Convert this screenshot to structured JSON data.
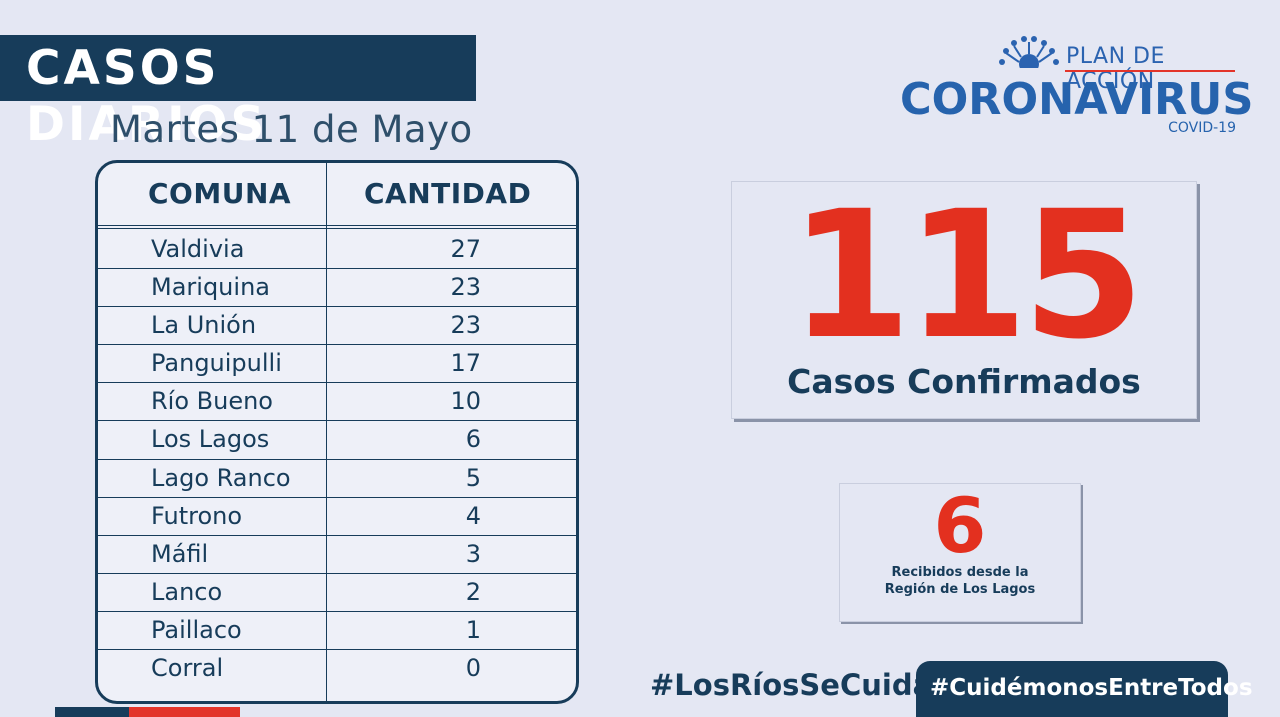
{
  "header": {
    "title": "CASOS DIARIOS",
    "date": "Martes 11 de Mayo"
  },
  "logo": {
    "plan": "PLAN DE ACCIÓN",
    "name": "CORONAVIRUS",
    "sub": "COVID-19"
  },
  "table": {
    "col1": "COMUNA",
    "col2": "CANTIDAD",
    "rows": [
      {
        "comuna": "Valdivia",
        "cantidad": "27"
      },
      {
        "comuna": "Mariquina",
        "cantidad": "23"
      },
      {
        "comuna": "La Unión",
        "cantidad": "23"
      },
      {
        "comuna": "Panguipulli",
        "cantidad": "17"
      },
      {
        "comuna": "Río Bueno",
        "cantidad": "10"
      },
      {
        "comuna": "Los Lagos",
        "cantidad": "6"
      },
      {
        "comuna": "Lago Ranco",
        "cantidad": "5"
      },
      {
        "comuna": "Futrono",
        "cantidad": "4"
      },
      {
        "comuna": "Máfil",
        "cantidad": "3"
      },
      {
        "comuna": "Lanco",
        "cantidad": "2"
      },
      {
        "comuna": "Paillaco",
        "cantidad": "1"
      },
      {
        "comuna": "Corral",
        "cantidad": "0"
      }
    ]
  },
  "confirmed": {
    "number": "115",
    "label": "Casos Confirmados"
  },
  "received": {
    "number": "6",
    "label_line1": "Recibidos desde la",
    "label_line2": "Región de Los Lagos"
  },
  "hashtags": {
    "first": "#LosRíosSeCuida",
    "second": "#CuidémonosEntreTodos"
  },
  "colors": {
    "navy": "#173c5a",
    "red": "#e3301f",
    "blue": "#2663ad",
    "background": "#e4e7f3"
  }
}
